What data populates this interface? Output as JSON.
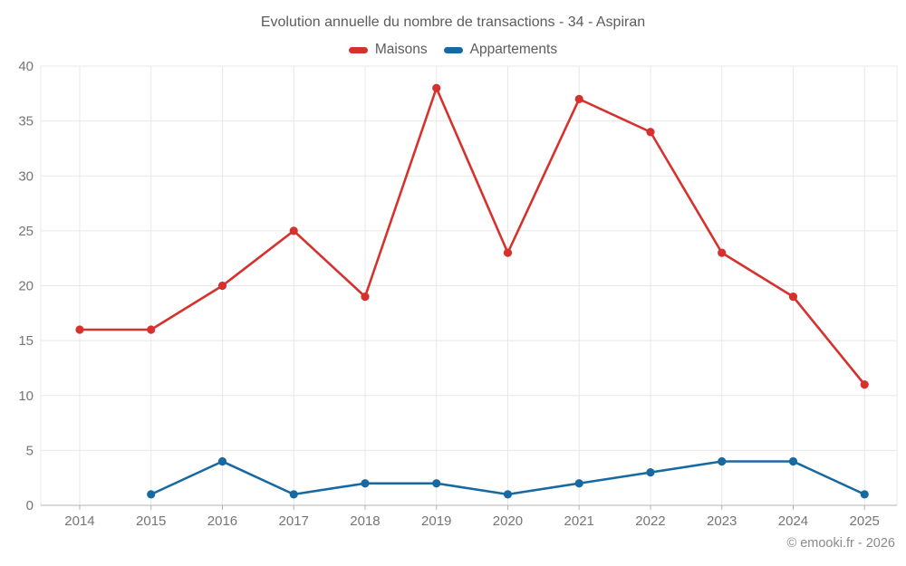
{
  "title": "Evolution annuelle du nombre de transactions - 34 - Aspiran",
  "legend": [
    {
      "label": "Maisons",
      "color": "#d7312e"
    },
    {
      "label": "Appartements",
      "color": "#1769a2"
    }
  ],
  "watermark": "© emooki.fr - 2026",
  "colors": {
    "maisons": "#d7312e",
    "appartements": "#1769a2",
    "gridline": "#e8e8e8",
    "axis_line": "#b3b3b3",
    "tick_text": "#757575",
    "title_text": "#5c5c5c",
    "watermark_text": "#8a8a8a"
  },
  "chart_data": {
    "type": "line",
    "title": "Evolution annuelle du nombre de transactions - 34 - Aspiran",
    "x": [
      2014,
      2015,
      2016,
      2017,
      2018,
      2019,
      2020,
      2021,
      2022,
      2023,
      2024,
      2025
    ],
    "series": [
      {
        "name": "Maisons",
        "color": "#d7312e",
        "values": [
          16,
          16,
          20,
          25,
          19,
          38,
          23,
          37,
          34,
          23,
          19,
          11
        ]
      },
      {
        "name": "Appartements",
        "color": "#1769a2",
        "values": [
          null,
          1,
          4,
          1,
          2,
          2,
          1,
          2,
          3,
          4,
          4,
          1
        ]
      }
    ],
    "xlabel": "",
    "ylabel": "",
    "ylim": [
      0,
      40
    ],
    "yticks": [
      0,
      5,
      10,
      15,
      20,
      25,
      30,
      35,
      40
    ],
    "grid": true,
    "legend_position": "top"
  }
}
